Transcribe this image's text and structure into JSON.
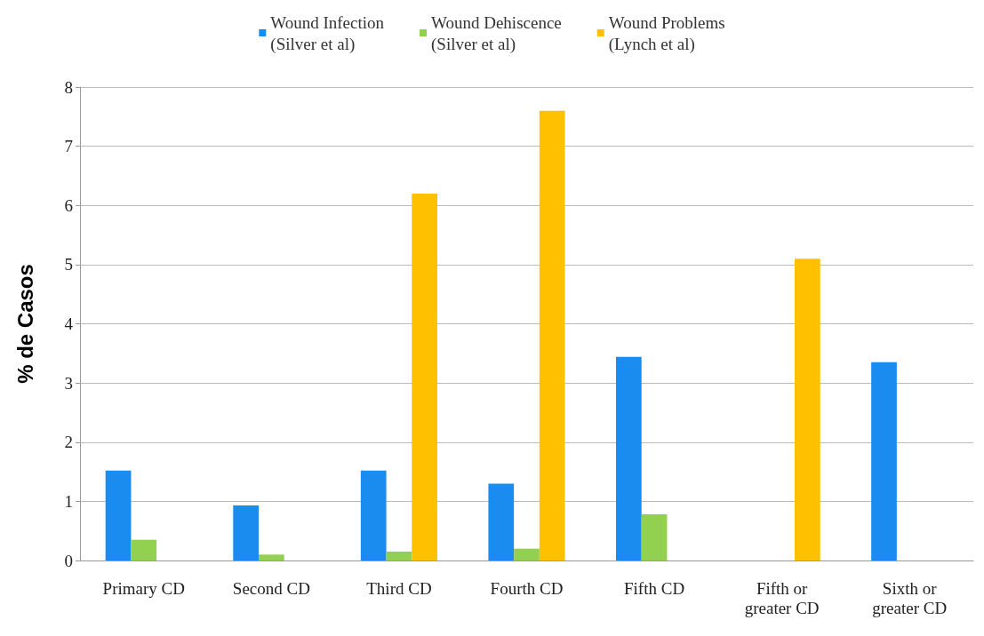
{
  "chart_data": {
    "type": "bar",
    "ylabel": "% de Casos",
    "categories": [
      "Primary CD",
      "Second CD",
      "Third CD",
      "Fourth CD",
      "Fifth CD",
      "Fifth or\ngreater CD",
      "Sixth or\ngreater CD"
    ],
    "series": [
      {
        "name": "Wound Infection\n(Silver et al)",
        "color": "#1a8cf0",
        "values": [
          1.52,
          0.93,
          1.52,
          1.3,
          3.44,
          null,
          3.35
        ]
      },
      {
        "name": "Wound Dehiscence\n(Silver et al)",
        "color": "#92d050",
        "values": [
          0.35,
          0.1,
          0.15,
          0.2,
          0.78,
          null,
          null
        ]
      },
      {
        "name": "Wound Problems\n(Lynch et al)",
        "color": "#ffc000",
        "values": [
          null,
          null,
          6.2,
          7.6,
          null,
          5.1,
          null
        ]
      }
    ],
    "ylim": [
      0,
      8
    ],
    "yticks": [
      0,
      1,
      2,
      3,
      4,
      5,
      6,
      7,
      8
    ],
    "grid": "y",
    "legend": "top"
  }
}
